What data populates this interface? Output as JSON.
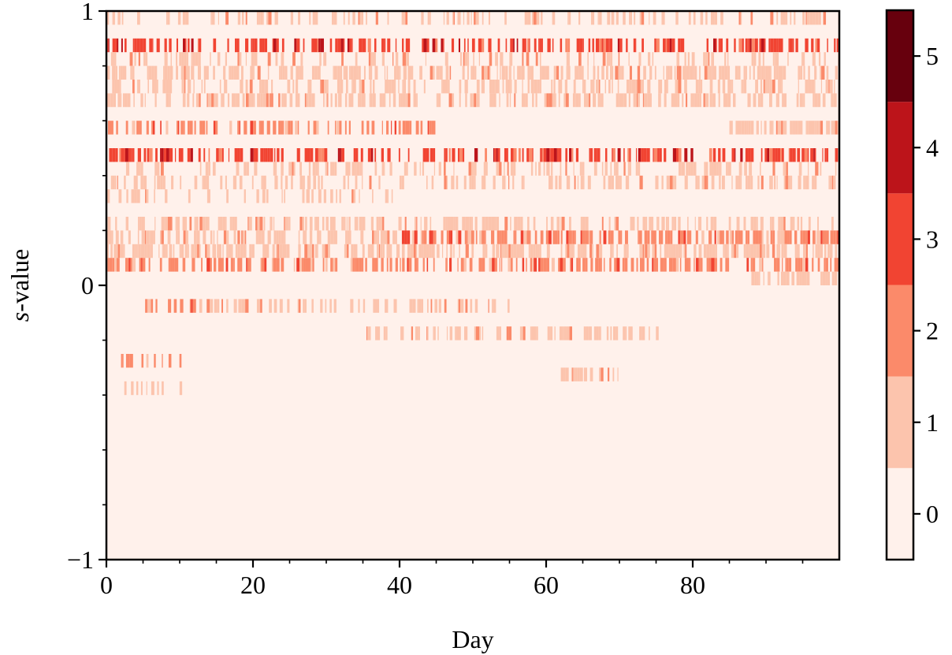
{
  "chart_data": {
    "type": "heatmap",
    "title": "",
    "xlabel": "Day",
    "ylabel_italic": "s",
    "ylabel_rest": "-value",
    "xlim": [
      0,
      100
    ],
    "ylim": [
      -1,
      1
    ],
    "x_ticks": [
      0,
      20,
      40,
      60,
      80
    ],
    "x_tick_labels": [
      "0",
      "20",
      "40",
      "60",
      "80"
    ],
    "y_ticks": [
      -1,
      0,
      1
    ],
    "y_tick_labels": [
      "−1",
      "0",
      "1"
    ],
    "colorbar": {
      "ticks": [
        0,
        1,
        2,
        3,
        4,
        5
      ],
      "tick_labels": [
        "0",
        "1",
        "2",
        "3",
        "4",
        "5"
      ],
      "range": [
        -0.5,
        5.5
      ],
      "colors": [
        "#fff1eb",
        "#fcc4ad",
        "#fb8a6a",
        "#f14432",
        "#bc141a",
        "#67000d"
      ]
    },
    "grid": false,
    "bands": [
      {
        "s_range": [
          0.95,
          1.0
        ],
        "segments": [
          [
            0,
            100,
            1,
            0.35
          ]
        ]
      },
      {
        "s_range": [
          0.85,
          0.9
        ],
        "segments": [
          [
            0,
            100,
            3,
            0.5
          ]
        ]
      },
      {
        "s_range": [
          0.8,
          0.85
        ],
        "segments": [
          [
            0,
            100,
            1,
            0.3
          ]
        ]
      },
      {
        "s_range": [
          0.75,
          0.8
        ],
        "segments": [
          [
            0,
            100,
            1,
            0.55
          ]
        ]
      },
      {
        "s_range": [
          0.7,
          0.75
        ],
        "segments": [
          [
            0,
            100,
            1,
            0.45
          ]
        ]
      },
      {
        "s_range": [
          0.65,
          0.7
        ],
        "segments": [
          [
            0,
            100,
            1,
            0.5
          ]
        ]
      },
      {
        "s_range": [
          0.55,
          0.6
        ],
        "segments": [
          [
            0,
            45,
            2,
            0.45
          ],
          [
            85,
            100,
            1,
            0.8
          ]
        ]
      },
      {
        "s_range": [
          0.45,
          0.5
        ],
        "segments": [
          [
            0,
            100,
            3,
            0.45
          ]
        ]
      },
      {
        "s_range": [
          0.4,
          0.45
        ],
        "segments": [
          [
            0,
            100,
            1,
            0.3
          ]
        ]
      },
      {
        "s_range": [
          0.35,
          0.4
        ],
        "segments": [
          [
            0,
            100,
            1,
            0.4
          ]
        ]
      },
      {
        "s_range": [
          0.3,
          0.35
        ],
        "segments": [
          [
            0,
            40,
            1,
            0.3
          ]
        ]
      },
      {
        "s_range": [
          0.2,
          0.25
        ],
        "segments": [
          [
            0,
            100,
            1,
            0.45
          ]
        ]
      },
      {
        "s_range": [
          0.15,
          0.2
        ],
        "segments": [
          [
            0,
            40,
            1,
            0.5
          ],
          [
            40,
            100,
            2,
            0.6
          ]
        ]
      },
      {
        "s_range": [
          0.1,
          0.15
        ],
        "segments": [
          [
            0,
            100,
            1,
            0.6
          ]
        ]
      },
      {
        "s_range": [
          0.05,
          0.1
        ],
        "segments": [
          [
            0,
            100,
            2,
            0.5
          ]
        ]
      },
      {
        "s_range": [
          0.0,
          0.05
        ],
        "segments": [
          [
            88,
            100,
            1,
            0.6
          ]
        ]
      },
      {
        "s_range": [
          -0.1,
          -0.05
        ],
        "segments": [
          [
            5,
            12,
            2,
            0.5
          ],
          [
            12,
            55,
            1,
            0.4
          ]
        ]
      },
      {
        "s_range": [
          -0.2,
          -0.15
        ],
        "segments": [
          [
            35,
            75,
            1,
            0.5
          ]
        ]
      },
      {
        "s_range": [
          -0.3,
          -0.25
        ],
        "segments": [
          [
            2,
            10,
            2,
            0.6
          ]
        ]
      },
      {
        "s_range": [
          -0.35,
          -0.3
        ],
        "segments": [
          [
            62,
            70,
            1,
            0.6
          ]
        ]
      },
      {
        "s_range": [
          -0.4,
          -0.35
        ],
        "segments": [
          [
            2,
            10,
            1,
            0.4
          ]
        ]
      }
    ]
  }
}
